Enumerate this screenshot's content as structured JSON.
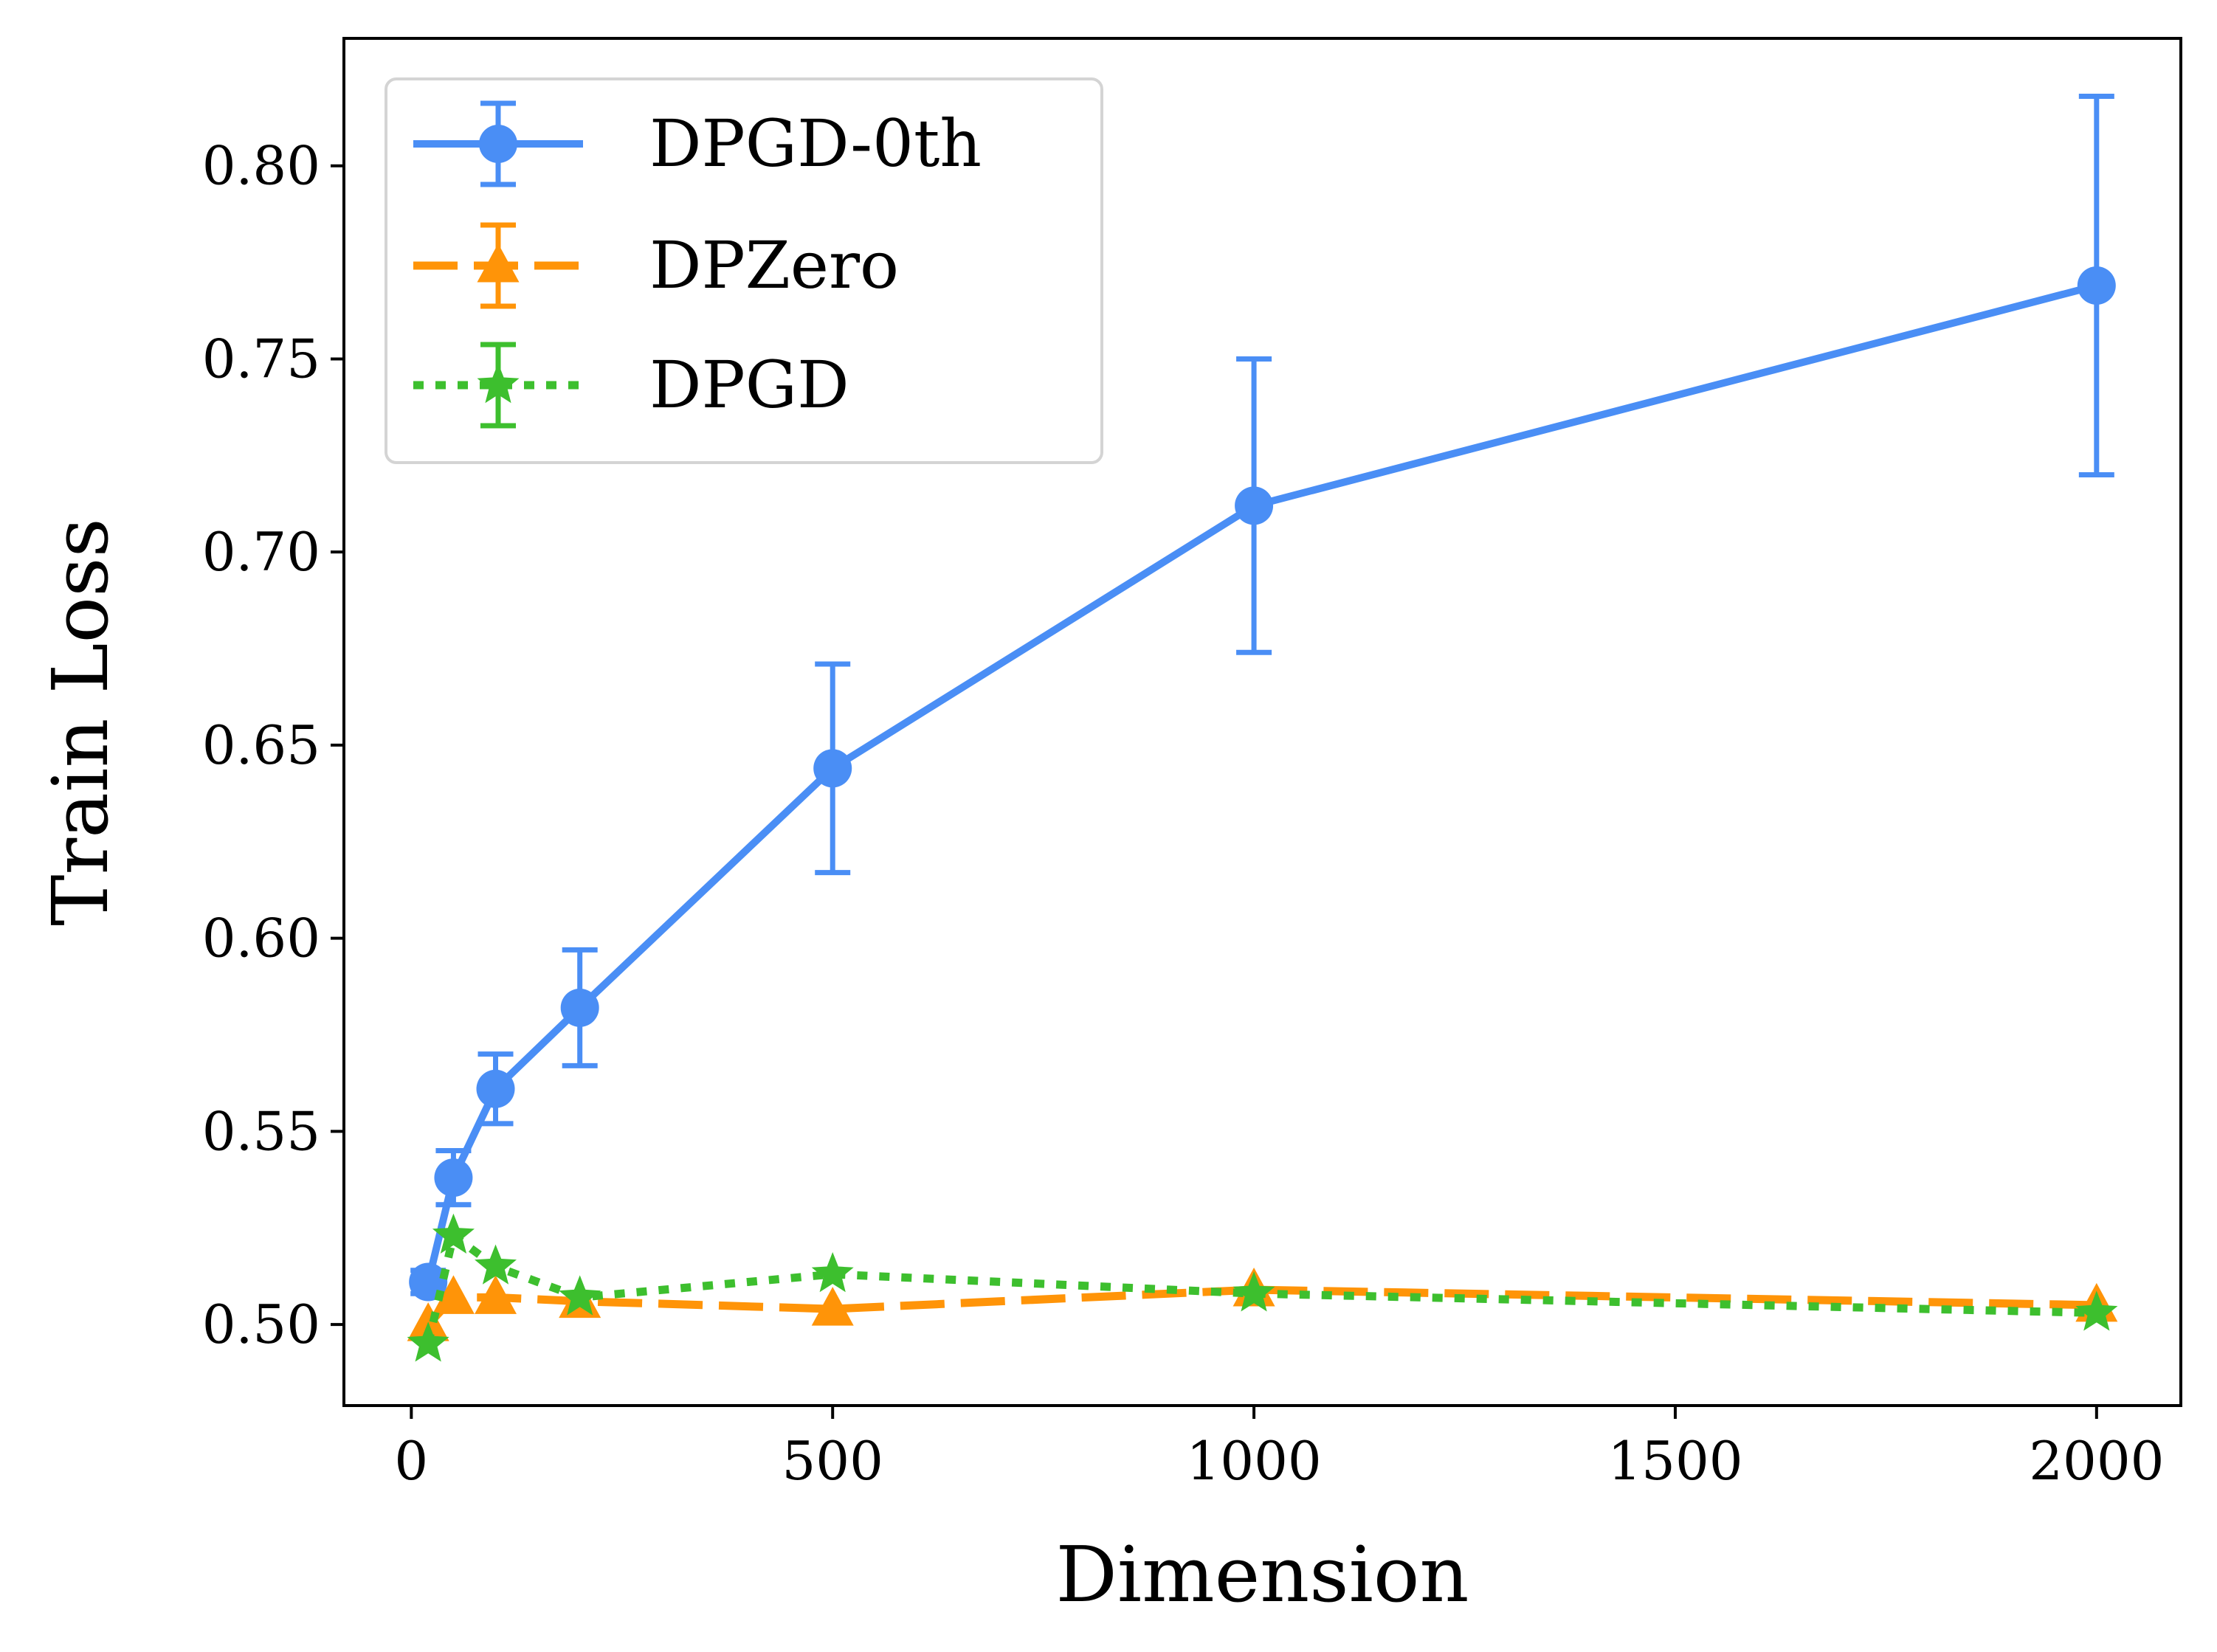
{
  "chart_data": {
    "type": "line",
    "title": "",
    "xlabel": "Dimension",
    "ylabel": "Train Loss",
    "xlim": [
      -80,
      2100
    ],
    "ylim": [
      0.479,
      0.833
    ],
    "xticks": [
      0,
      500,
      1000,
      1500,
      2000
    ],
    "yticks": [
      0.5,
      0.55,
      0.6,
      0.65,
      0.7,
      0.75,
      0.8
    ],
    "xtick_labels": [
      "0",
      "500",
      "1000",
      "1500",
      "2000"
    ],
    "ytick_labels": [
      "0.50",
      "0.55",
      "0.60",
      "0.65",
      "0.70",
      "0.75",
      "0.80"
    ],
    "grid": false,
    "legend_position": "top-left",
    "series": [
      {
        "name": "DPGD-0th",
        "color": "#4a8ef5",
        "style": "solid",
        "marker": "circle",
        "x": [
          20,
          50,
          100,
          200,
          500,
          1000,
          2000
        ],
        "y": [
          0.511,
          0.538,
          0.561,
          0.582,
          0.644,
          0.712,
          0.769
        ],
        "err": [
          0.003,
          0.007,
          0.009,
          0.015,
          0.027,
          0.038,
          0.049
        ]
      },
      {
        "name": "DPZero",
        "color": "#ff9408",
        "style": "dashed",
        "marker": "triangle",
        "x": [
          20,
          50,
          100,
          200,
          500,
          1000,
          2000
        ],
        "y": [
          0.5,
          0.507,
          0.507,
          0.506,
          0.504,
          0.509,
          0.505
        ],
        "err": [
          0.001,
          0.001,
          0.001,
          0.001,
          0.001,
          0.001,
          0.001
        ]
      },
      {
        "name": "DPGD",
        "color": "#3dbf2e",
        "style": "dotted",
        "marker": "star",
        "x": [
          20,
          50,
          100,
          200,
          500,
          1000,
          2000
        ],
        "y": [
          0.495,
          0.523,
          0.515,
          0.507,
          0.513,
          0.508,
          0.503
        ],
        "err": [
          0.001,
          0.001,
          0.001,
          0.001,
          0.001,
          0.001,
          0.001
        ]
      }
    ]
  }
}
